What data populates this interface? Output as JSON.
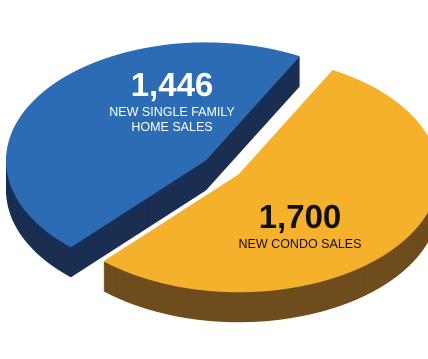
{
  "chart_data": {
    "type": "pie",
    "style": "3d-exploded",
    "categories": [
      "NEW SINGLE FAMILY HOME SALES",
      "NEW CONDO SALES"
    ],
    "values": [
      1446,
      1700
    ],
    "colors": [
      "#2b6cb5",
      "#f6b12c"
    ],
    "side_colors": [
      "#1a2f52",
      "#6e4d1d"
    ],
    "labels": [
      {
        "value": "1,446",
        "category_lines": [
          "NEW SINGLE FAMILY",
          "HOME SALES"
        ],
        "text_color": "#ffffff"
      },
      {
        "value": "1,700",
        "category_lines": [
          "NEW CONDO SALES"
        ],
        "text_color": "#111111"
      }
    ],
    "legend": "none"
  }
}
